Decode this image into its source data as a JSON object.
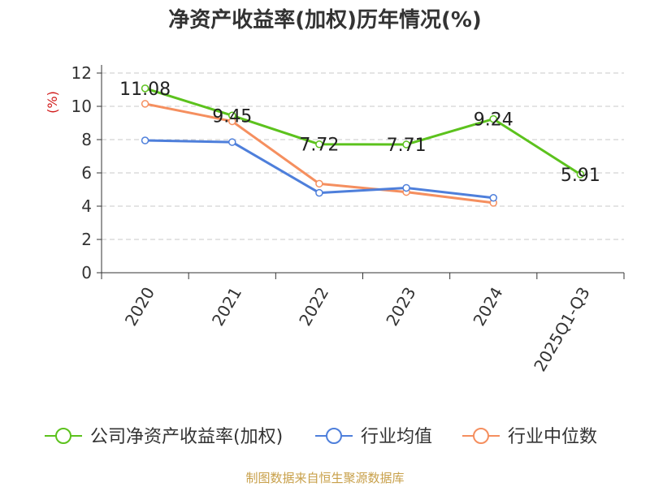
{
  "title": "净资产收益率(加权)历年情况(%)",
  "source": "制图数据来自恒生聚源数据库",
  "chart_data": {
    "type": "line",
    "title": "净资产收益率(加权)历年情况(%)",
    "ylabel": "(%)",
    "xlabel": "",
    "categories": [
      "2020",
      "2021",
      "2022",
      "2023",
      "2024",
      "2025Q1-Q3"
    ],
    "ylim": [
      0,
      12
    ],
    "yticks": [
      0,
      2,
      4,
      6,
      8,
      10,
      12
    ],
    "grid": true,
    "legend_position": "bottom",
    "series": [
      {
        "name": "公司净资产收益率(加权)",
        "color": "#5cc21d",
        "values": [
          11.08,
          9.45,
          7.72,
          7.71,
          9.24,
          5.91
        ],
        "labels": [
          "11.08",
          "9.45",
          "7.72",
          "7.71",
          "9.24",
          "5.91"
        ]
      },
      {
        "name": "行业均值",
        "color": "#4e7fdb",
        "values": [
          7.95,
          7.85,
          4.8,
          5.1,
          4.5,
          null
        ]
      },
      {
        "name": "行业中位数",
        "color": "#f58f5f",
        "values": [
          10.15,
          9.1,
          5.35,
          4.85,
          4.2,
          null
        ]
      }
    ]
  }
}
